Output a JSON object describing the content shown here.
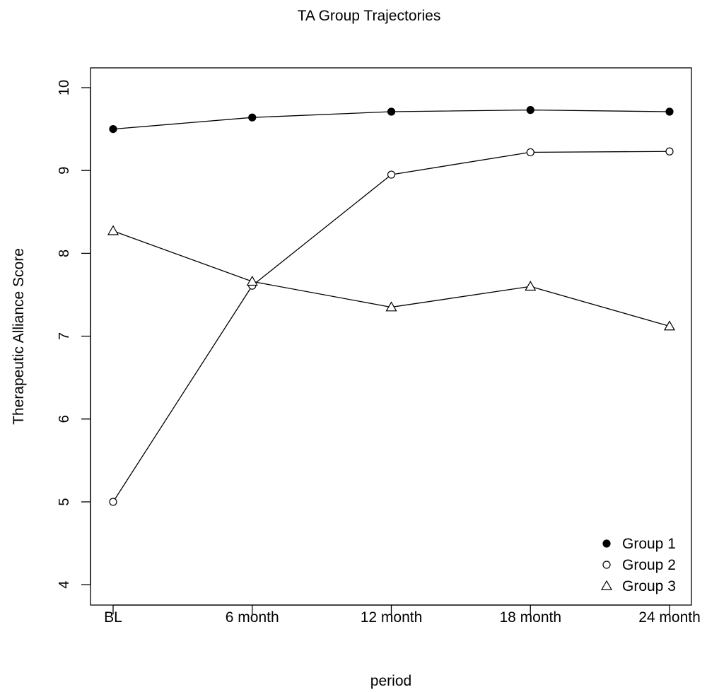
{
  "chart_data": {
    "type": "line",
    "title": "TA Group Trajectories",
    "xlabel": "period",
    "ylabel": "Therapeutic Alliance Score",
    "categories": [
      "BL",
      "6 month",
      "12 month",
      "18 month",
      "24 month"
    ],
    "ylim": [
      3.75,
      10.25
    ],
    "yticks": [
      4,
      5,
      6,
      7,
      8,
      9,
      10
    ],
    "grid": false,
    "legend_position": "bottom-right",
    "series": [
      {
        "name": "Group 1",
        "marker": "filled-circle",
        "values": [
          9.5,
          9.64,
          9.71,
          9.73,
          9.71
        ]
      },
      {
        "name": "Group 2",
        "marker": "open-circle",
        "values": [
          5.0,
          7.61,
          8.95,
          9.22,
          9.23
        ]
      },
      {
        "name": "Group 3",
        "marker": "open-triangle",
        "values": [
          8.27,
          7.66,
          7.35,
          7.6,
          7.12
        ]
      }
    ]
  }
}
